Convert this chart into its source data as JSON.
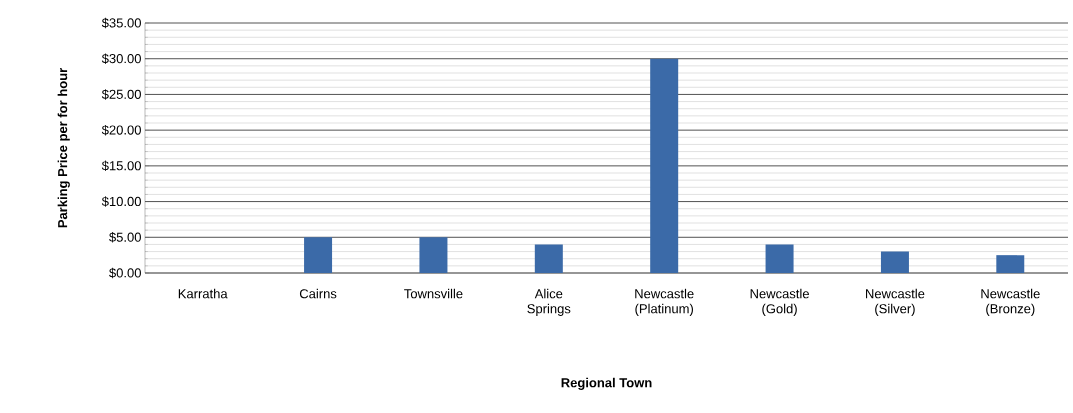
{
  "chart_data": {
    "type": "bar",
    "xlabel": "Regional Town",
    "ylabel": "Parking Price per for hour",
    "categories": [
      "Karratha",
      "Cairns",
      "Townsville",
      "Alice Springs",
      "Newcastle (Platinum)",
      "Newcastle (Gold)",
      "Newcastle (Silver)",
      "Newcastle (Bronze)"
    ],
    "values": [
      0,
      5,
      5,
      4,
      30,
      4,
      3,
      2.5
    ],
    "color": "#3b6aa8",
    "ylim": [
      0,
      35
    ],
    "yticks": [
      {
        "value": 0,
        "label": "$0.00"
      },
      {
        "value": 5,
        "label": "$5.00"
      },
      {
        "value": 10,
        "label": "$10.00"
      },
      {
        "value": 15,
        "label": "$15.00"
      },
      {
        "value": 20,
        "label": "$20.00"
      },
      {
        "value": 25,
        "label": "$25.00"
      },
      {
        "value": 30,
        "label": "$30.00"
      },
      {
        "value": 35,
        "label": "$35.00"
      }
    ],
    "grid": "y"
  }
}
